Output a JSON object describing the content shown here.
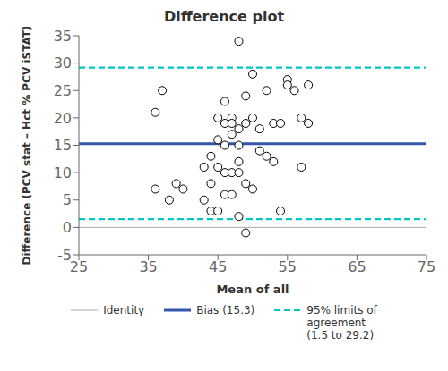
{
  "chart_data": {
    "type": "scatter",
    "title": "Difference plot",
    "xlabel": "Mean of all",
    "ylabel": "Difference (PCV stat – Hct % PCV iSTAT)",
    "xlim": [
      25,
      75
    ],
    "ylim": [
      -5,
      35
    ],
    "xticks": [
      25,
      35,
      45,
      55,
      65,
      75
    ],
    "yticks": [
      -5,
      0,
      5,
      10,
      15,
      20,
      25,
      30,
      35
    ],
    "x": [
      36,
      36,
      37,
      38,
      39,
      40,
      43,
      43,
      44,
      44,
      44,
      45,
      45,
      45,
      45,
      46,
      46,
      46,
      46,
      46,
      47,
      47,
      47,
      47,
      47,
      48,
      48,
      48,
      48,
      48,
      48,
      49,
      49,
      49,
      49,
      50,
      50,
      50,
      51,
      51,
      52,
      52,
      53,
      53,
      54,
      54,
      55,
      55,
      56,
      57,
      57,
      58,
      58
    ],
    "values": [
      7,
      21,
      25,
      5,
      8,
      7,
      11,
      5,
      8,
      13,
      3,
      16,
      20,
      11,
      3,
      19,
      23,
      15,
      10,
      6,
      20,
      19,
      17,
      10,
      6,
      34,
      18,
      15,
      12,
      10,
      2,
      24,
      19,
      8,
      -1,
      28,
      20,
      7,
      18,
      14,
      25,
      13,
      19,
      12,
      19,
      3,
      27,
      26,
      25,
      20,
      11,
      26,
      19
    ],
    "color": "black",
    "marker": "open",
    "lines": [
      {
        "name": "Identity",
        "values": [
          0
        ],
        "color": "#aaaaaa",
        "line_style": "solid"
      },
      {
        "name": "Bias (15.3)",
        "values": [
          15.3
        ],
        "color": "#3355aa",
        "line_style": "solid"
      },
      {
        "name": "95% limits of\nagreement\n(1.5 to 29.2)",
        "values": [
          29.2,
          1.5
        ],
        "color": "#00c8c8",
        "line_style": "dashed"
      }
    ],
    "grid": false,
    "legend": "bottom"
  }
}
